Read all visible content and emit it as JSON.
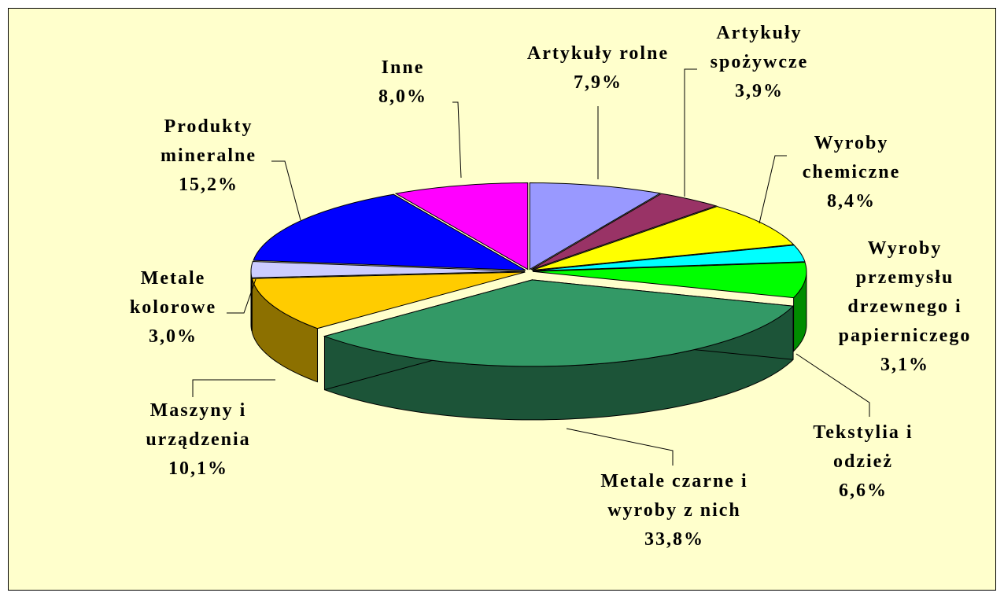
{
  "chart_data": {
    "type": "pie",
    "categories": [
      "Artykuły rolne",
      "Artykuły spożywcze",
      "Wyroby chemiczne",
      "Wyroby przemysłu drzewnego i papierniczego",
      "Tekstylia i odzież",
      "Metale czarne i wyroby z nich",
      "Maszyny i urządzenia",
      "Metale kolorowe",
      "Produkty mineralne",
      "Inne"
    ],
    "values": [
      7.9,
      3.9,
      8.4,
      3.1,
      6.6,
      33.8,
      10.1,
      3.0,
      15.2,
      8.0
    ],
    "value_labels": [
      "7,9%",
      "3,9%",
      "8,4%",
      "3,1%",
      "6,6%",
      "33,8%",
      "10,1%",
      "3,0%",
      "15,2%",
      "8,0%"
    ],
    "colors": [
      "#9999ff",
      "#993366",
      "#ffff00",
      "#00ffff",
      "#00ff00",
      "#339966",
      "#ffcc00",
      "#ccccff",
      "#0000ff",
      "#ff00ff"
    ]
  }
}
